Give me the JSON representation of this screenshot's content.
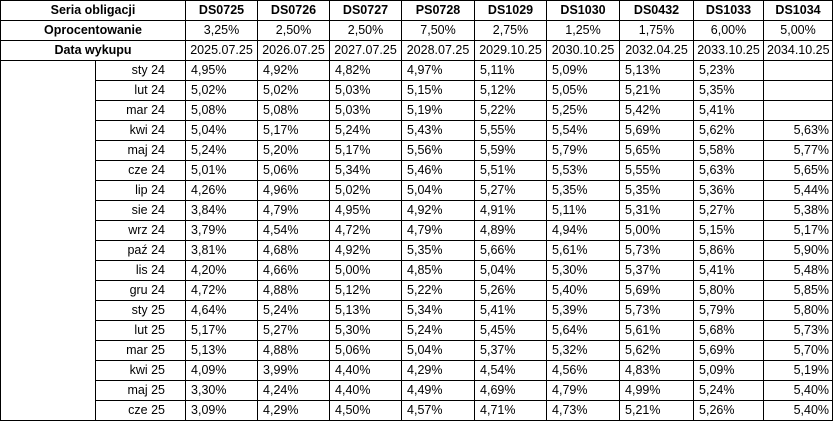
{
  "header": {
    "series_label": "Seria obligacji",
    "rate_label": "Oprocentowanie",
    "maturity_label": "Data wykupu",
    "columns": [
      {
        "name": "DS0725",
        "rate": "3,25%",
        "maturity": "2025.07.25"
      },
      {
        "name": "DS0726",
        "rate": "2,50%",
        "maturity": "2026.07.25"
      },
      {
        "name": "DS0727",
        "rate": "2,50%",
        "maturity": "2027.07.25"
      },
      {
        "name": "PS0728",
        "rate": "7,50%",
        "maturity": "2028.07.25"
      },
      {
        "name": "DS1029",
        "rate": "2,75%",
        "maturity": "2029.10.25"
      },
      {
        "name": "DS1030",
        "rate": "1,25%",
        "maturity": "2030.10.25"
      },
      {
        "name": "DS0432",
        "rate": "1,75%",
        "maturity": "2032.04.25"
      },
      {
        "name": "DS1033",
        "rate": "6,00%",
        "maturity": "2033.10.25"
      },
      {
        "name": "DS1034",
        "rate": "5,00%",
        "maturity": "2034.10.25"
      }
    ]
  },
  "rows": [
    {
      "month": "sty 24",
      "values": [
        "4,95%",
        "4,92%",
        "4,82%",
        "4,97%",
        "5,11%",
        "5,09%",
        "5,13%",
        "5,23%",
        ""
      ]
    },
    {
      "month": "lut 24",
      "values": [
        "5,02%",
        "5,02%",
        "5,03%",
        "5,15%",
        "5,12%",
        "5,05%",
        "5,21%",
        "5,35%",
        ""
      ]
    },
    {
      "month": "mar 24",
      "values": [
        "5,08%",
        "5,08%",
        "5,03%",
        "5,19%",
        "5,22%",
        "5,25%",
        "5,42%",
        "5,41%",
        ""
      ]
    },
    {
      "month": "kwi 24",
      "values": [
        "5,04%",
        "5,17%",
        "5,24%",
        "5,43%",
        "5,55%",
        "5,54%",
        "5,69%",
        "5,62%",
        "5,63%"
      ]
    },
    {
      "month": "maj 24",
      "values": [
        "5,24%",
        "5,20%",
        "5,17%",
        "5,56%",
        "5,59%",
        "5,79%",
        "5,65%",
        "5,58%",
        "5,77%"
      ]
    },
    {
      "month": "cze 24",
      "values": [
        "5,01%",
        "5,06%",
        "5,34%",
        "5,46%",
        "5,51%",
        "5,53%",
        "5,55%",
        "5,63%",
        "5,65%"
      ]
    },
    {
      "month": "lip 24",
      "values": [
        "4,26%",
        "4,96%",
        "5,02%",
        "5,04%",
        "5,27%",
        "5,35%",
        "5,35%",
        "5,36%",
        "5,44%"
      ]
    },
    {
      "month": "sie 24",
      "values": [
        "3,84%",
        "4,79%",
        "4,95%",
        "4,92%",
        "4,91%",
        "5,11%",
        "5,31%",
        "5,27%",
        "5,38%"
      ]
    },
    {
      "month": "wrz 24",
      "values": [
        "3,79%",
        "4,54%",
        "4,72%",
        "4,79%",
        "4,89%",
        "4,94%",
        "5,00%",
        "5,15%",
        "5,17%"
      ]
    },
    {
      "month": "paź 24",
      "values": [
        "3,81%",
        "4,68%",
        "4,92%",
        "5,35%",
        "5,66%",
        "5,61%",
        "5,73%",
        "5,86%",
        "5,90%"
      ]
    },
    {
      "month": "lis 24",
      "values": [
        "4,20%",
        "4,66%",
        "5,00%",
        "4,85%",
        "5,04%",
        "5,30%",
        "5,37%",
        "5,41%",
        "5,48%"
      ]
    },
    {
      "month": "gru 24",
      "values": [
        "4,72%",
        "4,88%",
        "5,12%",
        "5,22%",
        "5,26%",
        "5,40%",
        "5,69%",
        "5,80%",
        "5,85%"
      ]
    },
    {
      "month": "sty 25",
      "values": [
        "4,64%",
        "5,24%",
        "5,13%",
        "5,34%",
        "5,41%",
        "5,39%",
        "5,73%",
        "5,79%",
        "5,80%"
      ]
    },
    {
      "month": "lut 25",
      "values": [
        "5,17%",
        "5,27%",
        "5,30%",
        "5,24%",
        "5,45%",
        "5,64%",
        "5,61%",
        "5,68%",
        "5,73%"
      ]
    },
    {
      "month": "mar 25",
      "values": [
        "5,13%",
        "4,88%",
        "5,06%",
        "5,04%",
        "5,37%",
        "5,32%",
        "5,62%",
        "5,69%",
        "5,70%"
      ]
    },
    {
      "month": "kwi 25",
      "values": [
        "4,09%",
        "3,99%",
        "4,40%",
        "4,29%",
        "4,54%",
        "4,56%",
        "4,83%",
        "5,09%",
        "5,19%"
      ]
    },
    {
      "month": "maj 25",
      "values": [
        "3,30%",
        "4,24%",
        "4,40%",
        "4,49%",
        "4,69%",
        "4,79%",
        "4,99%",
        "5,24%",
        "5,40%"
      ]
    },
    {
      "month": "cze 25",
      "values": [
        "3,09%",
        "4,29%",
        "4,50%",
        "4,57%",
        "4,71%",
        "4,73%",
        "5,21%",
        "5,26%",
        "5,40%"
      ]
    }
  ]
}
